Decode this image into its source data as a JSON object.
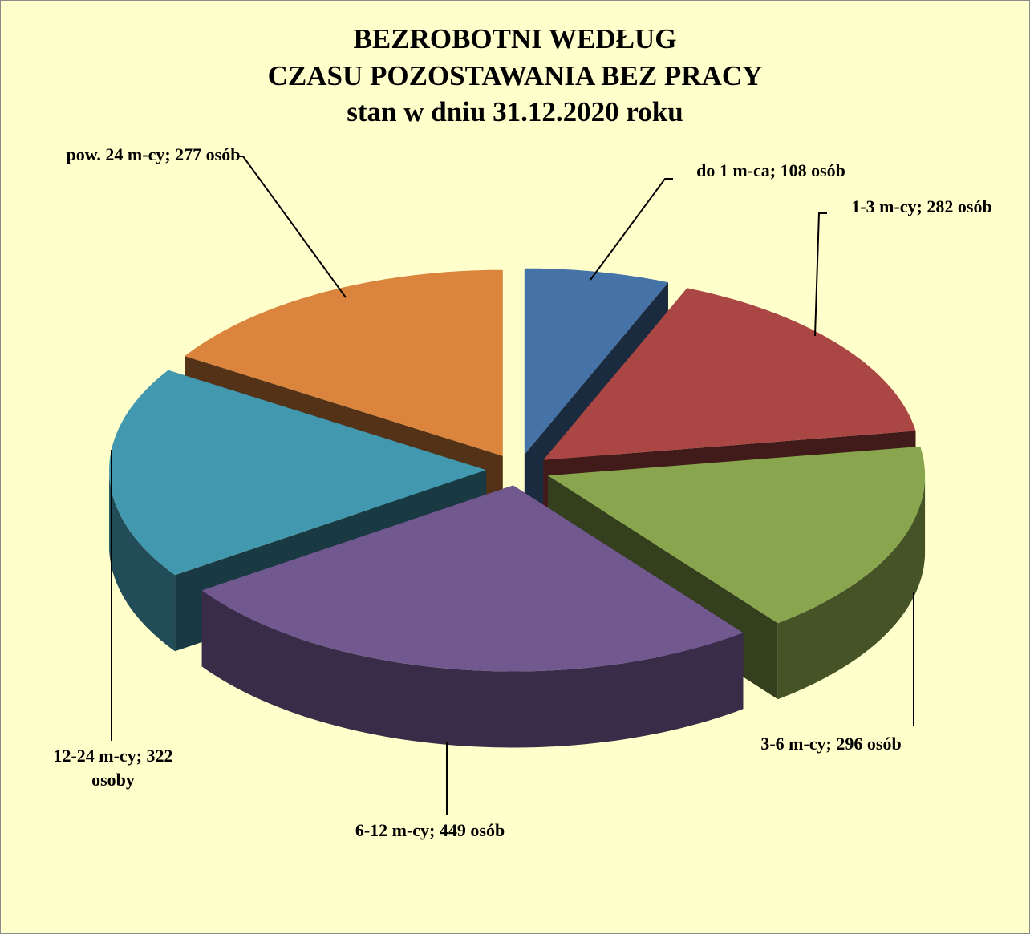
{
  "chart_data": {
    "type": "pie",
    "title": [
      "BEZROBOTNI WEDŁUG",
      "CZASU POZOSTAWANIA BEZ PRACY"
    ],
    "subtitle": "stan w dniu 31.12.2020 roku",
    "values": [
      108,
      282,
      296,
      449,
      322,
      277
    ],
    "value_labels": [
      "do 1 m-ca; 108 osób",
      "1-3 m-cy; 282 osób",
      "3-6 m-cy; 296 osób",
      "6-12 m-cy; 449 osób",
      "12-24 m-cy; 322 osoby",
      "pow. 24 m-cy; 277 osób"
    ],
    "colors": [
      "#4572a7",
      "#aa4643",
      "#89a54e",
      "#71588f",
      "#4198af",
      "#db843d"
    ]
  }
}
